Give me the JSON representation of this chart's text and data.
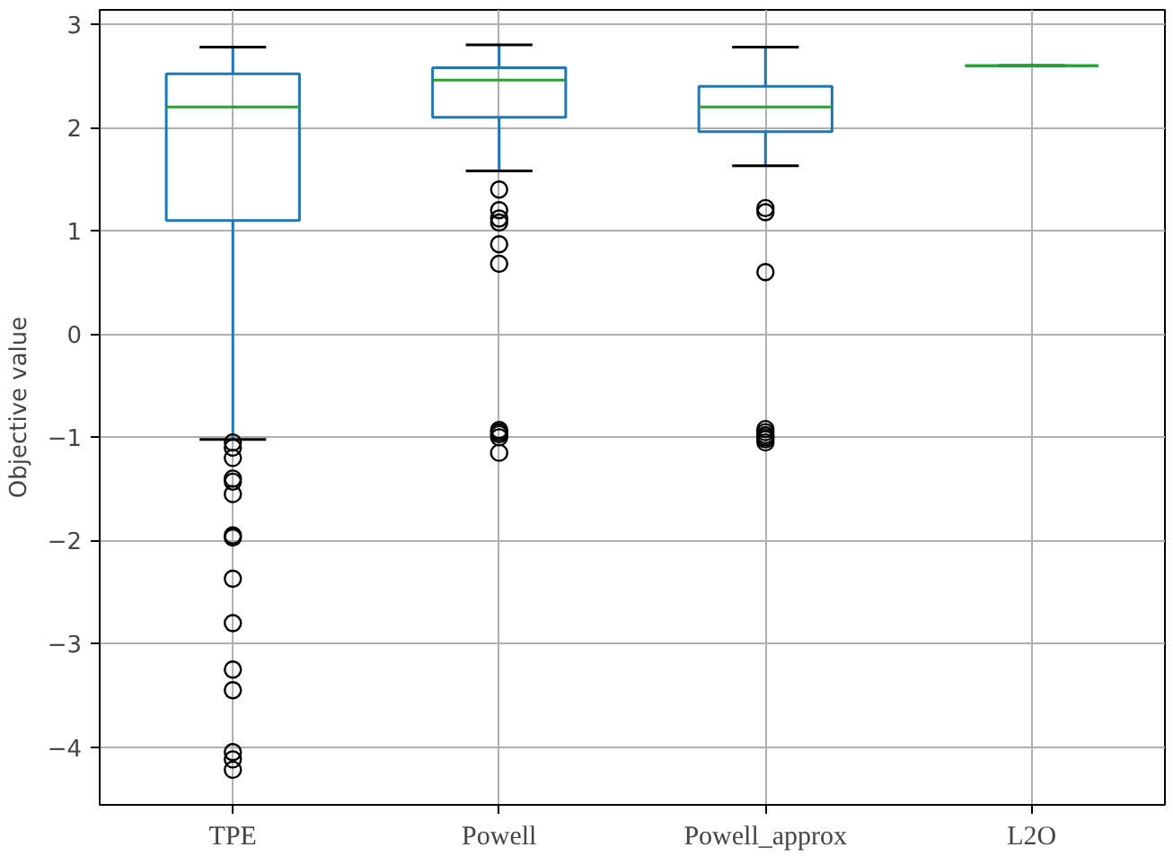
{
  "chart_data": {
    "type": "box",
    "ylabel": "Objective value",
    "categories": [
      "TPE",
      "Powell",
      "Powell_approx",
      "L2O"
    ],
    "series": [
      {
        "color": "#1f77b4",
        "boxes": [
          {
            "low": -1.02,
            "q1": 1.1,
            "median": 2.2,
            "q3": 2.52,
            "high": 2.78,
            "outliers": [
              -1.05,
              -1.1,
              -1.2,
              -1.4,
              -1.43,
              -1.55,
              -1.95,
              -1.97,
              -2.37,
              -2.8,
              -3.25,
              -3.45,
              -4.05,
              -4.12,
              -4.22
            ]
          },
          {
            "low": 1.58,
            "q1": 2.1,
            "median": 2.46,
            "q3": 2.58,
            "high": 2.8,
            "outliers": [
              1.4,
              1.2,
              1.12,
              1.08,
              0.87,
              0.68,
              -0.93,
              -0.95,
              -0.97,
              -1.0,
              -1.15
            ]
          },
          {
            "low": 1.63,
            "q1": 1.96,
            "median": 2.2,
            "q3": 2.4,
            "high": 2.78,
            "outliers": [
              1.22,
              1.18,
              0.6,
              -0.92,
              -0.95,
              -0.98,
              -1.0,
              -1.02,
              -1.05
            ]
          },
          {
            "low": 2.6,
            "q1": 2.6,
            "median": 2.6,
            "q3": 2.6,
            "high": 2.6
          }
        ]
      }
    ],
    "ylim": [
      -4.56,
      3.14
    ],
    "yticks": [
      -4,
      -3,
      -2,
      -1,
      0,
      1,
      2,
      3
    ],
    "grid": true,
    "marker": "circle"
  }
}
